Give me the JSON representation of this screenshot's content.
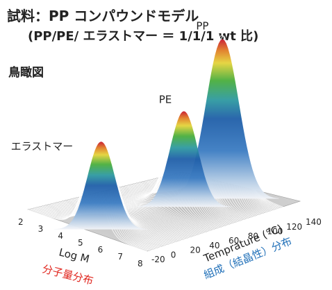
{
  "header": {
    "line1": "試料：PP コンパウンドモデル",
    "line2": "(PP/PE/ エラストマー ＝ 1/1/1 wt 比)"
  },
  "view_label": "鳥瞰図",
  "colors": {
    "red_label": "#e0241c",
    "blue_label": "#1f6fb8",
    "text": "#222222",
    "floor": "#c9c9c9"
  },
  "chart_data": {
    "type": "surface3d",
    "title": "",
    "xlabel": "Log M",
    "xlabel_sub": "分子量分布",
    "ylabel": "Temprature (°C)",
    "ylabel_sub": "組成（結晶性）分布",
    "x_ticks": [
      "2",
      "3",
      "4",
      "5",
      "6",
      "7",
      "8"
    ],
    "y_ticks": [
      "-20",
      "0",
      "20",
      "40",
      "60",
      "80",
      "100",
      "120",
      "140"
    ],
    "xlim": [
      2,
      8
    ],
    "ylim": [
      -20,
      140
    ],
    "peaks": [
      {
        "name": "エラストマー",
        "logM": 5.2,
        "temp": -10,
        "height": 0.55
      },
      {
        "name": "PE",
        "logM": 5.0,
        "temp": 80,
        "height": 0.6
      },
      {
        "name": "PP",
        "logM": 5.1,
        "temp": 118,
        "height": 1.0
      }
    ]
  }
}
